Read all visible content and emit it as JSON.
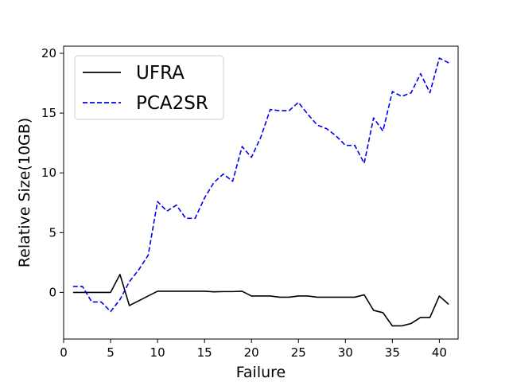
{
  "chart_data": {
    "type": "line",
    "title": "",
    "xlabel": "Failure",
    "ylabel": "Relative Size(10GB)",
    "xlim": [
      0.0,
      42.0
    ],
    "ylim": [
      -3.9,
      20.6
    ],
    "xticks": [
      0,
      5,
      10,
      15,
      20,
      25,
      30,
      35,
      40
    ],
    "yticks": [
      0,
      5,
      10,
      15,
      20
    ],
    "grid": false,
    "legend_position": "top-left",
    "x": [
      1,
      2,
      3,
      4,
      5,
      6,
      7,
      8,
      9,
      10,
      11,
      12,
      13,
      14,
      15,
      16,
      17,
      18,
      19,
      20,
      21,
      22,
      23,
      24,
      25,
      26,
      27,
      28,
      29,
      30,
      31,
      32,
      33,
      34,
      35,
      36,
      37,
      38,
      39,
      40,
      41
    ],
    "series": [
      {
        "name": "UFRA",
        "color": "#000000",
        "dash": "solid",
        "values": [
          0.0,
          0.0,
          0.0,
          0.0,
          0.0,
          1.5,
          -1.1,
          -0.7,
          -0.3,
          0.1,
          0.1,
          0.1,
          0.1,
          0.1,
          0.1,
          0.05,
          0.07,
          0.07,
          0.1,
          -0.3,
          -0.3,
          -0.3,
          -0.4,
          -0.4,
          -0.3,
          -0.3,
          -0.4,
          -0.4,
          -0.4,
          -0.4,
          -0.4,
          -0.2,
          -1.5,
          -1.7,
          -2.8,
          -2.8,
          -2.6,
          -2.1,
          -2.1,
          -0.3,
          -1.0
        ]
      },
      {
        "name": "PCA2SR",
        "color": "#0000ee",
        "dash": "dashed",
        "values": [
          0.5,
          0.5,
          -0.8,
          -0.8,
          -1.6,
          -0.6,
          0.9,
          1.9,
          3.1,
          7.6,
          6.8,
          7.3,
          6.2,
          6.2,
          7.9,
          9.2,
          9.9,
          9.3,
          12.2,
          11.3,
          13.0,
          15.3,
          15.2,
          15.2,
          15.9,
          14.9,
          14.0,
          13.7,
          13.1,
          12.3,
          12.3,
          10.8,
          14.6,
          13.5,
          16.8,
          16.4,
          16.7,
          18.3,
          16.7,
          19.6,
          19.2
        ]
      }
    ]
  }
}
